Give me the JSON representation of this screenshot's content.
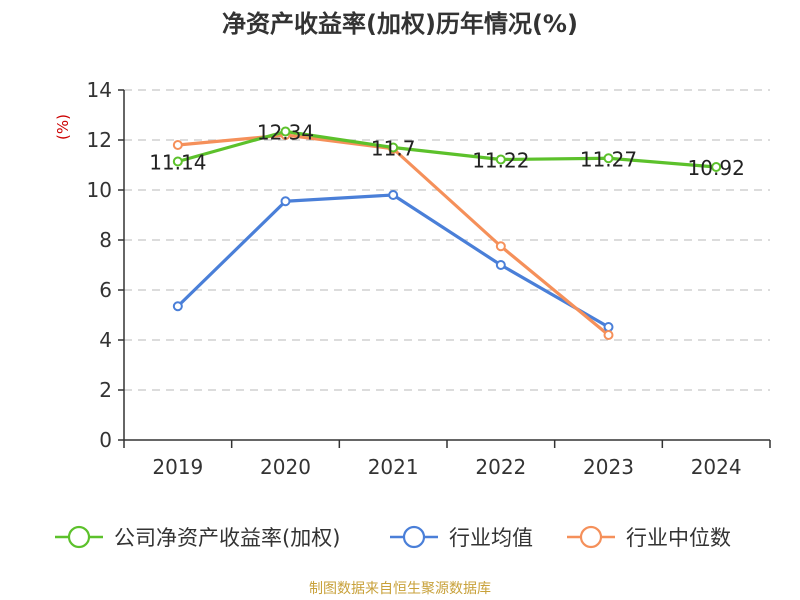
{
  "chart_data": {
    "type": "line",
    "title": "净资产收益率(加权)历年情况(%)",
    "ylabel": "(%)",
    "xlabel": "",
    "categories": [
      "2019",
      "2020",
      "2021",
      "2022",
      "2023",
      "2024"
    ],
    "ylim": [
      0,
      14
    ],
    "yticks": [
      0,
      2,
      4,
      6,
      8,
      10,
      12,
      14
    ],
    "grid": true,
    "legend_position": "bottom",
    "series": [
      {
        "name": "公司净资产收益率(加权)",
        "color": "#5cc12b",
        "values": [
          11.14,
          12.34,
          11.7,
          11.22,
          11.27,
          10.92
        ],
        "labels": [
          "11.14",
          "12.34",
          "11.7",
          "11.22",
          "11.27",
          "10.92"
        ]
      },
      {
        "name": "行业均值",
        "color": "#4a7fd8",
        "values": [
          5.35,
          9.55,
          9.8,
          7.0,
          4.52,
          null
        ]
      },
      {
        "name": "行业中位数",
        "color": "#f5905a",
        "values": [
          11.8,
          12.2,
          11.65,
          7.75,
          4.2,
          null
        ]
      }
    ]
  },
  "footer": {
    "source": "制图数据来自恒生聚源数据库"
  },
  "colors": {
    "title": "#333333",
    "ylabel": "#cc0000",
    "axis": "#333333",
    "grid": "#c8c8c8"
  }
}
